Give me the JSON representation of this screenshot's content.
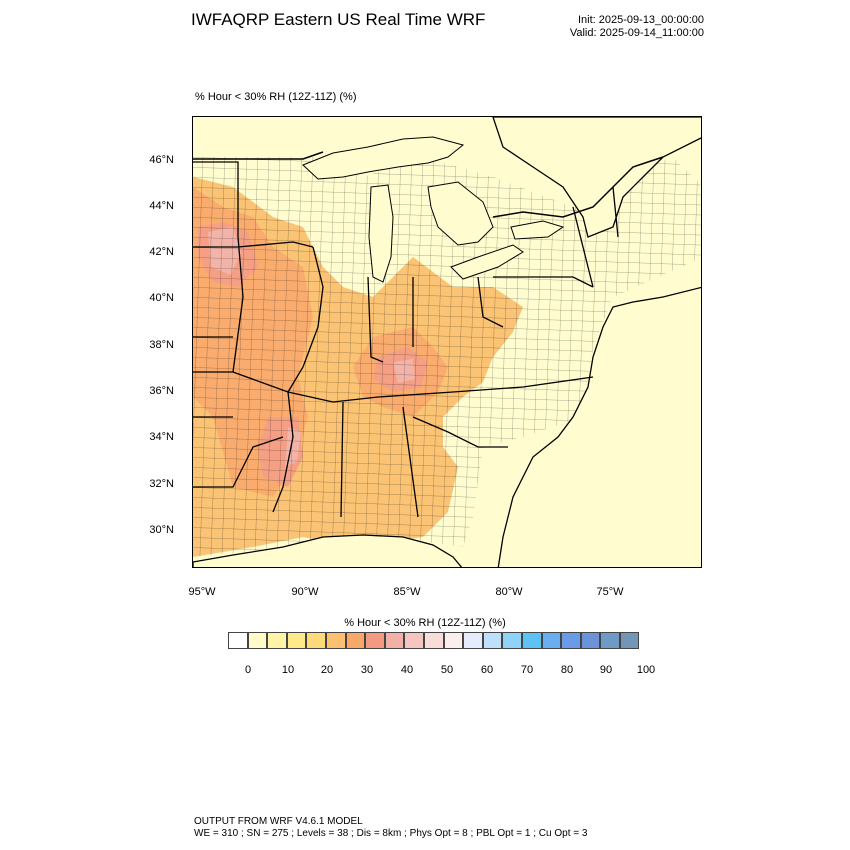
{
  "header": {
    "title": "IWFAQRP Eastern US Real Time WRF",
    "init": "Init: 2025-09-13_00:00:00",
    "valid": "Valid: 2025-09-14_11:00:00"
  },
  "plot": {
    "label": "% Hour < 30% RH (12Z-11Z)   (%)"
  },
  "axes": {
    "lat_labels": [
      "46°N",
      "44°N",
      "42°N",
      "40°N",
      "38°N",
      "36°N",
      "34°N",
      "32°N",
      "30°N"
    ],
    "lon_labels": [
      "95°W",
      "90°W",
      "85°W",
      "80°W",
      "75°W"
    ]
  },
  "colorbar": {
    "title": "% Hour < 30% RH (12Z-11Z)  (%)",
    "tick_labels": [
      "0",
      "10",
      "20",
      "30",
      "40",
      "50",
      "60",
      "70",
      "80",
      "90",
      "100"
    ],
    "colors": [
      "#ffffff",
      "#fffcc8",
      "#fff3a8",
      "#ffe98a",
      "#fddb7a",
      "#fbc070",
      "#f9a869",
      "#f59a82",
      "#f2b1a6",
      "#f5c6bf",
      "#f8dcd7",
      "#fbeeec",
      "#e6ecfb",
      "#bfe0fb",
      "#8fd3f8",
      "#5ec3f4",
      "#6aaef0",
      "#6b9be8",
      "#6a93d8",
      "#6e9bc6",
      "#7296b8"
    ]
  },
  "footer": {
    "line1": "OUTPUT FROM WRF V4.6.1 MODEL",
    "line2": "WE = 310 ; SN = 275 ; Levels = 38 ; Dis = 8km ; Phys Opt = 8 ; PBL Opt = 1 ; Cu Opt = 3"
  },
  "colors": {
    "land": "#fffdd0",
    "low": "#fbc070",
    "mid": "#f9a869",
    "high": "#f59a82",
    "peak": "#f2b1a6"
  }
}
